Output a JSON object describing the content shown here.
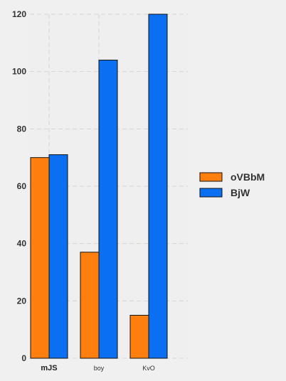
{
  "chart_data": {
    "type": "bar",
    "categories": [
      "mJS",
      "boy",
      "KvO"
    ],
    "series": [
      {
        "name": "oVBbM",
        "values": [
          70,
          37,
          15
        ],
        "color": "#ff7f0e"
      },
      {
        "name": "BjW",
        "values": [
          71,
          104,
          120
        ],
        "color": "#0a6ff0"
      }
    ],
    "title": "",
    "xlabel": "",
    "ylabel": "",
    "ylim": [
      0,
      120
    ],
    "yticks": [
      0,
      20,
      40,
      60,
      80,
      100,
      120
    ],
    "grid": true,
    "legend_position": "right"
  }
}
